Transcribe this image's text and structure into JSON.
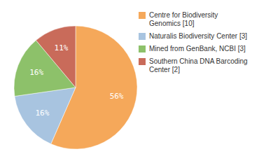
{
  "chart_data": {
    "type": "pie",
    "categories": [
      "Centre for Biodiversity\nGenomics [10]",
      "Naturalis Biodiversity Center [3]",
      "Mined from GenBank, NCBI [3]",
      "Southern China DNA Barcoding\nCenter [2]"
    ],
    "values": [
      56,
      16,
      16,
      11
    ],
    "value_labels": [
      "56%",
      "16%",
      "16%",
      "11%"
    ],
    "colors": [
      "#F5A85A",
      "#A8C4E0",
      "#8DC16A",
      "#C96B5A"
    ],
    "data_labels": true,
    "legend": "right"
  }
}
